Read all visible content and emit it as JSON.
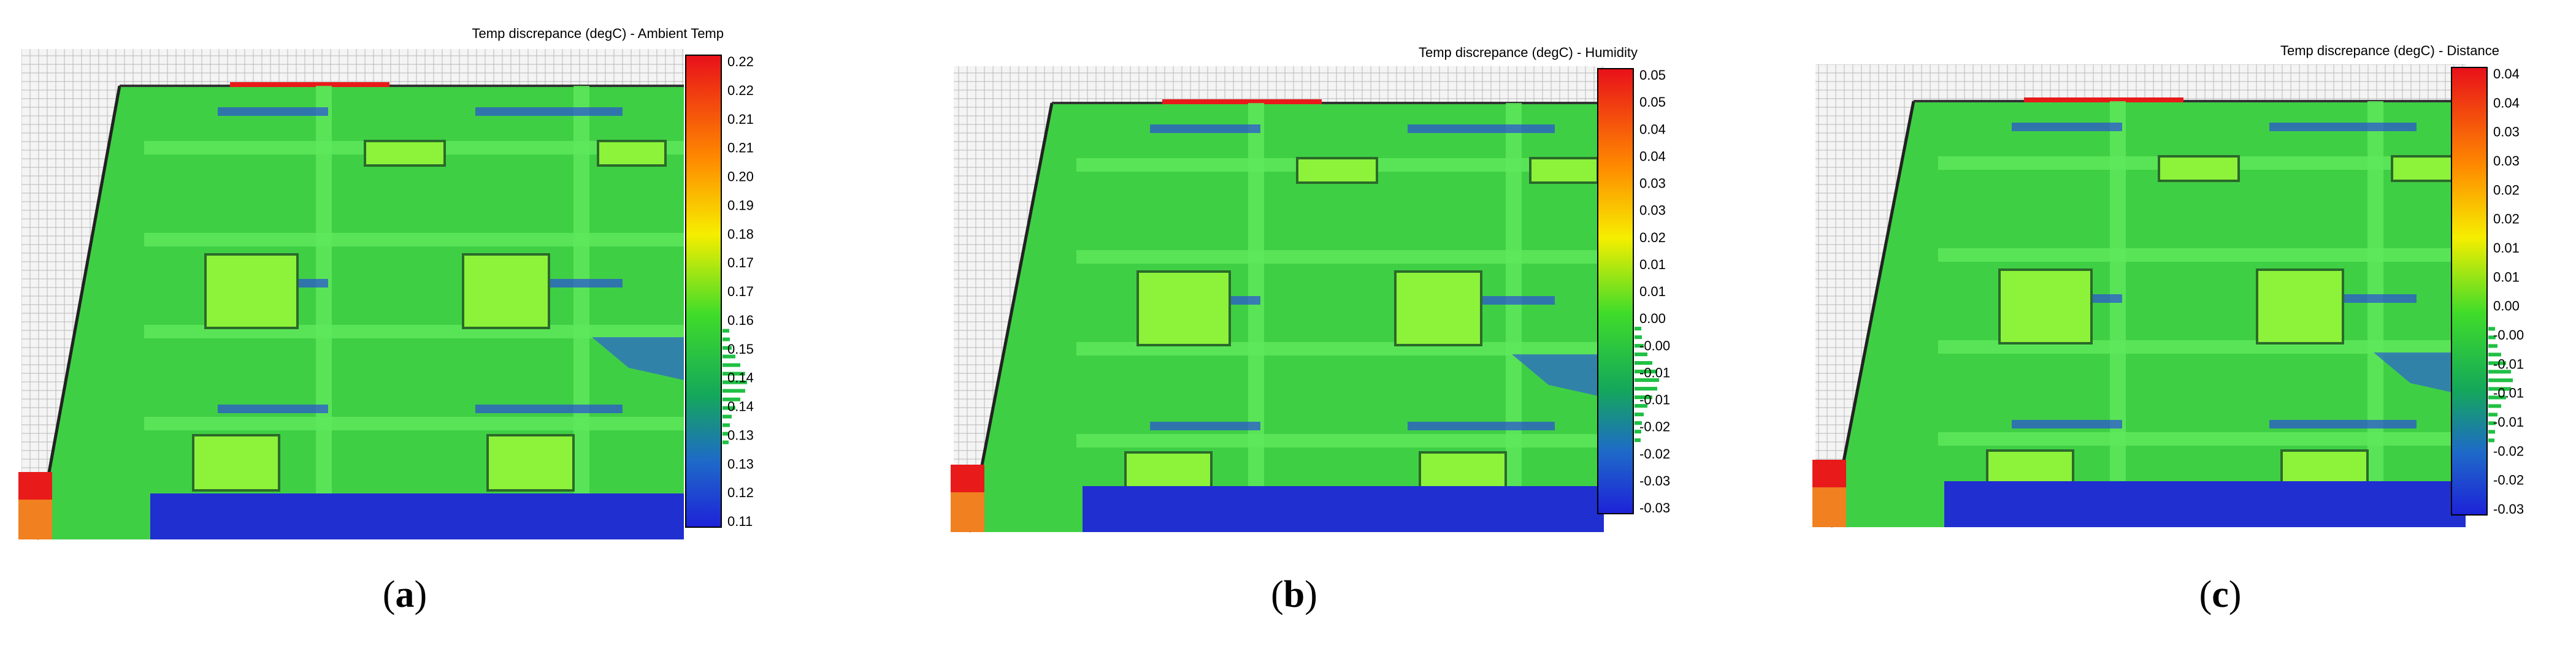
{
  "figure": {
    "panels": [
      {
        "id": "a",
        "caption_letter": "a",
        "colorbar_title": "Temp discrepance (degC) - Ambient Temp",
        "colorbar_ticks": [
          "0.22",
          "0.22",
          "0.21",
          "0.21",
          "0.20",
          "0.19",
          "0.18",
          "0.17",
          "0.17",
          "0.16",
          "0.15",
          "0.14",
          "0.14",
          "0.13",
          "0.13",
          "0.12",
          "0.11"
        ]
      },
      {
        "id": "b",
        "caption_letter": "b",
        "colorbar_title": "Temp discrepance (degC) - Humidity",
        "colorbar_ticks": [
          "0.05",
          "0.05",
          "0.04",
          "0.04",
          "0.03",
          "0.03",
          "0.02",
          "0.01",
          "0.01",
          "0.00",
          "-0.00",
          "-0.01",
          "-0.01",
          "-0.02",
          "-0.02",
          "-0.03",
          "-0.03"
        ]
      },
      {
        "id": "c",
        "caption_letter": "c",
        "colorbar_title": "Temp discrepance (degC) - Distance",
        "colorbar_ticks": [
          "0.04",
          "0.04",
          "0.03",
          "0.03",
          "0.02",
          "0.02",
          "0.01",
          "0.01",
          "0.00",
          "-0.00",
          "-0.01",
          "-0.01",
          "-0.01",
          "-0.02",
          "-0.02",
          "-0.03"
        ]
      }
    ],
    "colors": {
      "field_green": "#3fcf45",
      "frame_green": "#5ee85a",
      "window_yellowgreen": "#8df23a",
      "shadow_blue": "#2a4fd8",
      "hot_red": "#e81a1a",
      "cold_blue": "#1f2fd0"
    }
  }
}
